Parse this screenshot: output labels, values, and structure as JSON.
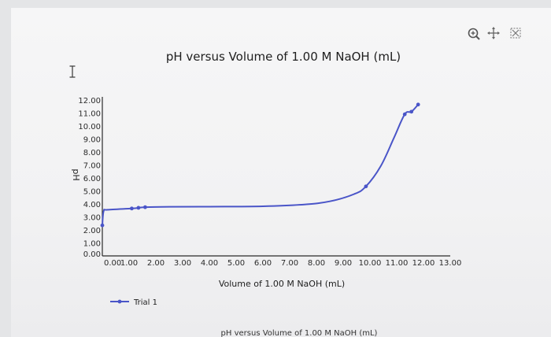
{
  "toolbar": {
    "icons": [
      "zoom-icon",
      "pan-icon",
      "reset-icon"
    ]
  },
  "bottom_caption": "pH versus Volume of 1.00 M NaOH (mL)",
  "colors": {
    "series": "#4a55c8",
    "axis": "#1e1e1e"
  },
  "chart_data": {
    "type": "line",
    "title": "pH versus Volume of 1.00 M NaOH (mL)",
    "xlabel": "Volume of 1.00 M NaOH (mL)",
    "ylabel": "pH",
    "xlim": [
      0,
      13
    ],
    "ylim": [
      0,
      12
    ],
    "x_ticks": [
      "0.00",
      "1.00",
      "2.00",
      "3.00",
      "4.00",
      "5.00",
      "6.00",
      "7.00",
      "8.00",
      "9.00",
      "10.00",
      "11.00",
      "12.00",
      "13.00"
    ],
    "y_ticks": [
      "0.00",
      "1.00",
      "2.00",
      "3.00",
      "4.00",
      "5.00",
      "6.00",
      "7.00",
      "8.00",
      "9.00",
      "10.00",
      "11.00",
      "12.00"
    ],
    "legend_position": "bottom-left",
    "series": [
      {
        "name": "Trial 1",
        "points": [
          {
            "x": 0.0,
            "y": 2.35,
            "marker": true
          },
          {
            "x": 0.05,
            "y": 3.45,
            "marker": false
          },
          {
            "x": 0.2,
            "y": 3.55,
            "marker": false
          },
          {
            "x": 1.1,
            "y": 3.65,
            "marker": true
          },
          {
            "x": 1.35,
            "y": 3.7,
            "marker": true
          },
          {
            "x": 1.6,
            "y": 3.75,
            "marker": true
          },
          {
            "x": 2.5,
            "y": 3.78,
            "marker": false
          },
          {
            "x": 4.0,
            "y": 3.79,
            "marker": false
          },
          {
            "x": 6.0,
            "y": 3.82,
            "marker": false
          },
          {
            "x": 7.5,
            "y": 3.95,
            "marker": false
          },
          {
            "x": 8.5,
            "y": 4.2,
            "marker": false
          },
          {
            "x": 9.4,
            "y": 4.75,
            "marker": false
          },
          {
            "x": 9.85,
            "y": 5.35,
            "marker": true
          },
          {
            "x": 10.4,
            "y": 6.9,
            "marker": false
          },
          {
            "x": 10.9,
            "y": 9.1,
            "marker": false
          },
          {
            "x": 11.3,
            "y": 10.9,
            "marker": true
          },
          {
            "x": 11.55,
            "y": 11.1,
            "marker": true
          },
          {
            "x": 11.8,
            "y": 11.65,
            "marker": true
          }
        ]
      }
    ]
  }
}
